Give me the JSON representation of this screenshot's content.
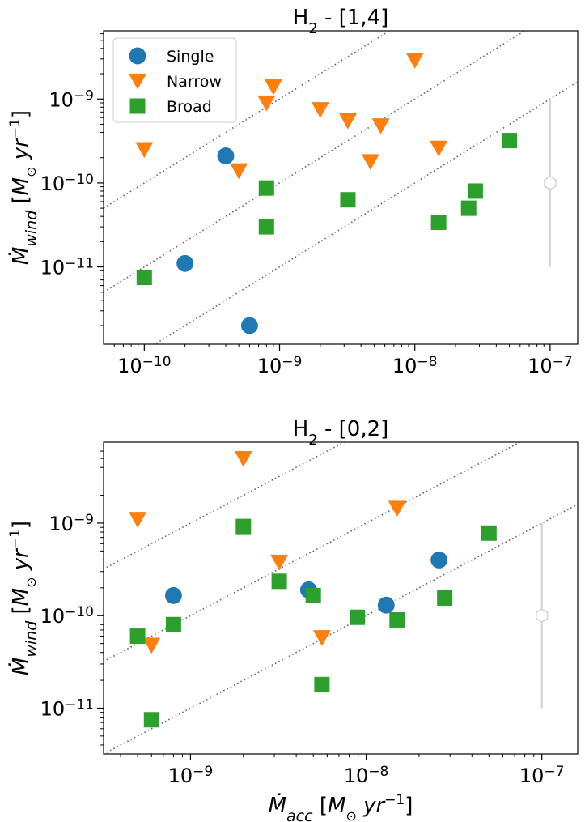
{
  "chart_data": [
    {
      "type": "scatter",
      "title": "H$_2$ - [1,4]",
      "title_main": "H",
      "title_sub": "2",
      "title_rest": " - [1,4]",
      "xscale": "log",
      "yscale": "log",
      "xlim": [
        5e-11,
        1.6e-07
      ],
      "ylim": [
        1.2e-12,
        6.5e-09
      ],
      "xticks": [
        {
          "value": 1e-10,
          "base": "10",
          "exp": "−10"
        },
        {
          "value": 1e-09,
          "base": "10",
          "exp": "−9"
        },
        {
          "value": 1e-08,
          "base": "10",
          "exp": "−8"
        },
        {
          "value": 1e-07,
          "base": "10",
          "exp": "−7"
        }
      ],
      "yticks": [
        {
          "value": 1e-11,
          "base": "10",
          "exp": "−11"
        },
        {
          "value": 1e-10,
          "base": "10",
          "exp": "−10"
        },
        {
          "value": 1e-09,
          "base": "10",
          "exp": "−9"
        }
      ],
      "xlabel": "",
      "ylabel": "Ṁwind [M⊙ yr−1]",
      "legend": {
        "placement": "top-left"
      },
      "guide_lines_ratio": [
        1,
        0.1,
        0.01
      ],
      "error_bar": {
        "x": 1e-07,
        "y": 1e-10,
        "ymin": 1e-11,
        "ymax": 1e-09,
        "color": "#d0d0d0"
      },
      "series": [
        {
          "name": "Single",
          "marker": "circle",
          "color": "#1f77b4",
          "points": [
            [
              2e-10,
              1.1e-11
            ],
            [
              4e-10,
              2.1e-10
            ],
            [
              6e-10,
              2e-12
            ]
          ]
        },
        {
          "name": "Narrow",
          "marker": "triangle-down",
          "color": "#ff7f0e",
          "points": [
            [
              1e-10,
              2.5e-10
            ],
            [
              5e-10,
              1.4e-10
            ],
            [
              8e-10,
              9e-10
            ],
            [
              9e-10,
              1.4e-09
            ],
            [
              2e-09,
              7.5e-10
            ],
            [
              3.2e-09,
              5.5e-10
            ],
            [
              4.7e-09,
              1.8e-10
            ],
            [
              5.6e-09,
              4.8e-10
            ],
            [
              1e-08,
              2.9e-09
            ],
            [
              1.5e-08,
              2.6e-10
            ]
          ]
        },
        {
          "name": "Broad",
          "marker": "square",
          "color": "#2ca02c",
          "points": [
            [
              1e-10,
              7.5e-12
            ],
            [
              8e-10,
              8.7e-11
            ],
            [
              8e-10,
              3e-11
            ],
            [
              3.2e-09,
              6.3e-11
            ],
            [
              1.5e-08,
              3.4e-11
            ],
            [
              2.5e-08,
              5e-11
            ],
            [
              2.8e-08,
              8e-11
            ],
            [
              5e-08,
              3.2e-10
            ]
          ]
        }
      ]
    },
    {
      "type": "scatter",
      "title": "H$_2$ - [0,2]",
      "title_main": "H",
      "title_sub": "2",
      "title_rest": " - [0,2]",
      "xscale": "log",
      "yscale": "log",
      "xlim": [
        3.2e-10,
        1.6e-07
      ],
      "ylim": [
        3.2e-12,
        7.5e-09
      ],
      "xticks": [
        {
          "value": 1e-09,
          "base": "10",
          "exp": "−9"
        },
        {
          "value": 1e-08,
          "base": "10",
          "exp": "−8"
        },
        {
          "value": 1e-07,
          "base": "10",
          "exp": "−7"
        }
      ],
      "yticks": [
        {
          "value": 1e-11,
          "base": "10",
          "exp": "−11"
        },
        {
          "value": 1e-10,
          "base": "10",
          "exp": "−10"
        },
        {
          "value": 1e-09,
          "base": "10",
          "exp": "−9"
        }
      ],
      "xlabel": "Ṁacc [M⊙ yr−1]",
      "ylabel": "Ṁwind [M⊙ yr−1]",
      "guide_lines_ratio": [
        1,
        0.1,
        0.01
      ],
      "error_bar": {
        "x": 1e-07,
        "y": 1e-10,
        "ymin": 1e-11,
        "ymax": 1e-09,
        "color": "#d0d0d0"
      },
      "series": [
        {
          "name": "Single",
          "marker": "circle",
          "color": "#1f77b4",
          "points": [
            [
              8e-10,
              1.65e-10
            ],
            [
              4.7e-09,
              1.9e-10
            ],
            [
              1.3e-08,
              1.3e-10
            ],
            [
              2.6e-08,
              4e-10
            ]
          ]
        },
        {
          "name": "Narrow",
          "marker": "triangle-down",
          "color": "#ff7f0e",
          "points": [
            [
              5e-10,
              1.1e-09
            ],
            [
              6e-10,
              4.8e-11
            ],
            [
              2e-09,
              5e-09
            ],
            [
              3.2e-09,
              3.8e-10
            ],
            [
              5.6e-09,
              5.8e-11
            ],
            [
              1.5e-08,
              1.45e-09
            ]
          ]
        },
        {
          "name": "Broad",
          "marker": "square",
          "color": "#2ca02c",
          "points": [
            [
              5e-10,
              6e-11
            ],
            [
              6e-10,
              7.5e-12
            ],
            [
              8e-10,
              8e-11
            ],
            [
              2e-09,
              9.2e-10
            ],
            [
              3.2e-09,
              2.35e-10
            ],
            [
              5e-09,
              1.65e-10
            ],
            [
              5.6e-09,
              1.8e-11
            ],
            [
              8.9e-09,
              9.6e-11
            ],
            [
              1.5e-08,
              9e-11
            ],
            [
              2.8e-08,
              1.55e-10
            ],
            [
              5e-08,
              7.8e-10
            ]
          ]
        }
      ]
    }
  ]
}
